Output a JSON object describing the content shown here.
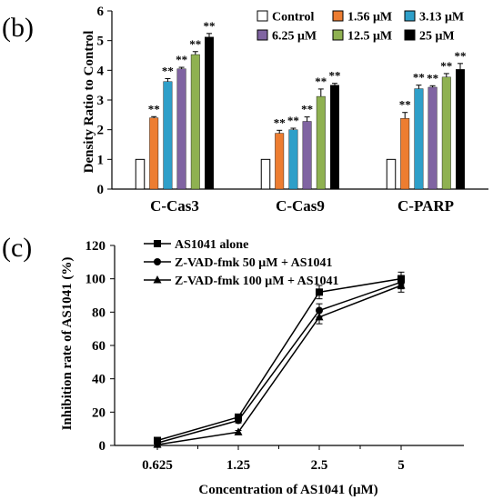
{
  "chart_data": [
    {
      "panel": "(b)",
      "type": "bar",
      "ylabel": "Density Ratio to Control",
      "ylim": [
        0,
        6
      ],
      "yticks": [
        "0",
        "1",
        "2",
        "3",
        "4",
        "5",
        "6"
      ],
      "categories": [
        "C-Cas3",
        "C-Cas9",
        "C-PARP"
      ],
      "grid": false,
      "legend_position": "top-right",
      "significance_mark": "**",
      "series": [
        {
          "name": "Control",
          "color": "#ffffff",
          "values": [
            1,
            1,
            1
          ],
          "errors": [
            0,
            0,
            0
          ],
          "marks": [
            "",
            "",
            ""
          ]
        },
        {
          "name": "1.56 μM",
          "color": "#ed7d31",
          "values": [
            2.4,
            1.88,
            2.38
          ],
          "errors": [
            0.04,
            0.1,
            0.2
          ],
          "marks": [
            "**",
            "**",
            "**"
          ]
        },
        {
          "name": "3.13 μM",
          "color": "#2e9fc9",
          "values": [
            3.62,
            2.0,
            3.38
          ],
          "errors": [
            0.1,
            0.05,
            0.12
          ],
          "marks": [
            "**",
            "**",
            "**"
          ]
        },
        {
          "name": "6.25 μM",
          "color": "#8064a2",
          "values": [
            4.05,
            2.28,
            3.43
          ],
          "errors": [
            0.05,
            0.15,
            0.05
          ],
          "marks": [
            "**",
            "**",
            "**"
          ]
        },
        {
          "name": "12.5 μM",
          "color": "#8fb151",
          "values": [
            4.53,
            3.12,
            3.77
          ],
          "errors": [
            0.1,
            0.25,
            0.12
          ],
          "marks": [
            "**",
            "**",
            "**"
          ]
        },
        {
          "name": "25 μM",
          "color": "#000000",
          "values": [
            5.12,
            3.5,
            4.03
          ],
          "errors": [
            0.12,
            0.06,
            0.2
          ],
          "marks": [
            "**",
            "**",
            "**"
          ]
        }
      ]
    },
    {
      "panel": "(c)",
      "type": "line",
      "xlabel": "Concentration  of AS1041 (μM)",
      "ylabel": "Inhibition rate of AS1041 (%)",
      "x": [
        "0.625",
        "1.25",
        "2.5",
        "5"
      ],
      "ylim": [
        0,
        120
      ],
      "yticks": [
        "0",
        "20",
        "40",
        "60",
        "80",
        "100",
        "120"
      ],
      "grid": false,
      "legend_position": "top-left",
      "series": [
        {
          "name": "AS1041 alone",
          "marker": "square",
          "values": [
            3,
            17,
            92,
            100
          ],
          "errors": [
            1,
            1.5,
            4,
            4
          ]
        },
        {
          "name": "Z-VAD-fmk 50 μM + AS1041",
          "marker": "circle",
          "values": [
            1.5,
            15,
            81,
            98
          ],
          "errors": [
            1,
            1.5,
            4,
            4
          ]
        },
        {
          "name": "Z-VAD-fmk 100 μM + AS1041",
          "marker": "triangle",
          "values": [
            0.5,
            8,
            77,
            96
          ],
          "errors": [
            1,
            1,
            4,
            4
          ]
        }
      ]
    }
  ]
}
